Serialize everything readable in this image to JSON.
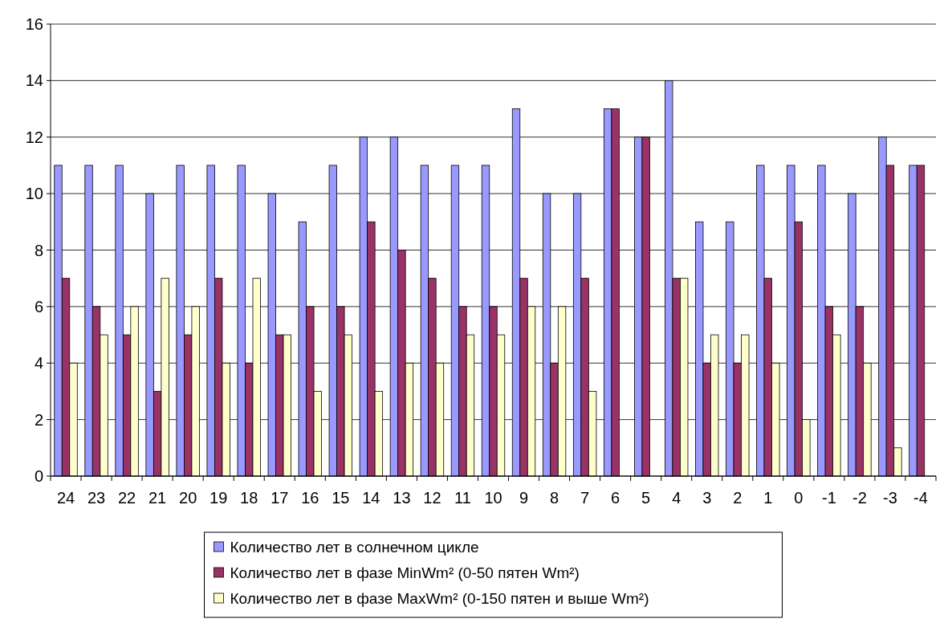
{
  "chart_data": {
    "type": "bar",
    "categories": [
      "24",
      "23",
      "22",
      "21",
      "20",
      "19",
      "18",
      "17",
      "16",
      "15",
      "14",
      "13",
      "12",
      "11",
      "10",
      "9",
      "8",
      "7",
      "6",
      "5",
      "4",
      "3",
      "2",
      "1",
      "0",
      "-1",
      "-2",
      "-3",
      "-4"
    ],
    "series": [
      {
        "name": "Количество лет в солнечном цикле",
        "color": "#9999ff",
        "values": [
          11,
          11,
          11,
          10,
          11,
          11,
          11,
          10,
          9,
          11,
          12,
          12,
          11,
          11,
          11,
          13,
          10,
          10,
          13,
          12,
          14,
          9,
          9,
          11,
          11,
          11,
          10,
          12,
          11
        ]
      },
      {
        "name": "Количество лет в фазе MinWm² (0-50 пятен Wm²)",
        "color": "#993366",
        "values": [
          7,
          6,
          5,
          3,
          5,
          7,
          4,
          5,
          6,
          6,
          9,
          8,
          7,
          6,
          6,
          7,
          4,
          7,
          13,
          12,
          7,
          4,
          4,
          7,
          9,
          6,
          6,
          11,
          11
        ]
      },
      {
        "name": "Количество лет в фазе MaxWm² (0-150 пятен и выше Wm²)",
        "color": "#ffffcc",
        "values": [
          4,
          5,
          6,
          7,
          6,
          4,
          7,
          5,
          3,
          5,
          3,
          4,
          4,
          5,
          5,
          6,
          6,
          3,
          null,
          null,
          7,
          5,
          5,
          4,
          2,
          5,
          4,
          1,
          null
        ]
      }
    ],
    "ylim": [
      0,
      16
    ],
    "yticks": [
      0,
      2,
      4,
      6,
      8,
      10,
      12,
      14,
      16
    ],
    "grid": "y",
    "legend": "bottom"
  }
}
